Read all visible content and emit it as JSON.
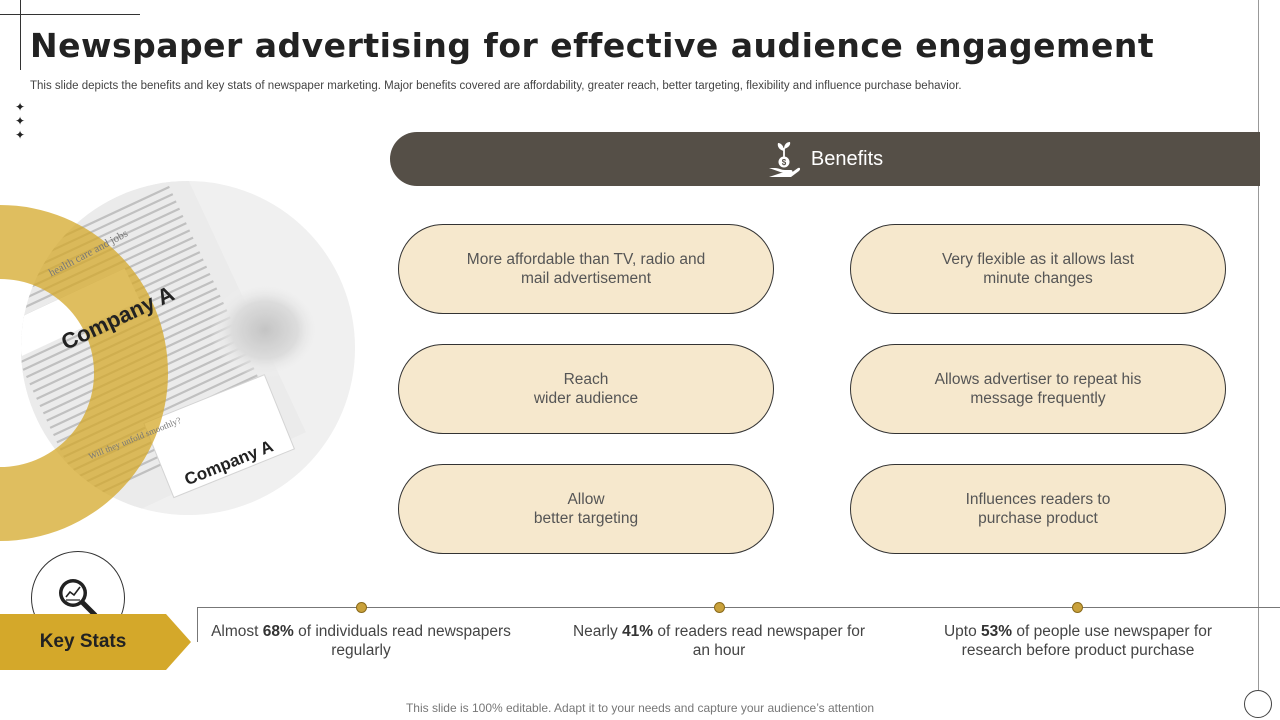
{
  "slide": {
    "title": "Newspaper advertising for effective audience engagement",
    "subtitle": "This slide depicts the benefits and key stats of newspaper marketing. Major benefits covered are affordability, greater reach, better targeting, flexibility and influence purchase behavior.",
    "footer": "This slide is 100% editable. Adapt it to your needs and capture your audience’s attention"
  },
  "photo": {
    "label_top": "Company A",
    "label_bottom": "Company A",
    "headline_fragment": "health care and jobs",
    "headline_fragment_2": "Will they unfold smoothly?"
  },
  "benefits": {
    "header": "Benefits",
    "icon": "money-plant-hand-icon",
    "items": [
      "More affordable than TV, radio and\nmail advertisement",
      "Very flexible as it allows last\nminute changes",
      "Reach\nwider audience",
      "Allows advertiser to repeat his\nmessage frequently",
      "Allow\nbetter targeting",
      "Influences  readers to\npurchase product"
    ]
  },
  "key_stats": {
    "label": "Key Stats",
    "icon": "magnifier-chart-icon",
    "items": [
      {
        "pre": "Almost ",
        "value": "68%",
        "post": " of individuals read newspapers regularly"
      },
      {
        "pre": "Nearly ",
        "value": "41%",
        "post": " of readers read newspaper for an hour"
      },
      {
        "pre": "Upto ",
        "value": "53%",
        "post": " of people use newspaper for research before product purchase"
      }
    ]
  },
  "colors": {
    "accent_gold": "#d4a82a",
    "pill_fill": "#f6e8cd",
    "header_bar": "#554f47"
  }
}
